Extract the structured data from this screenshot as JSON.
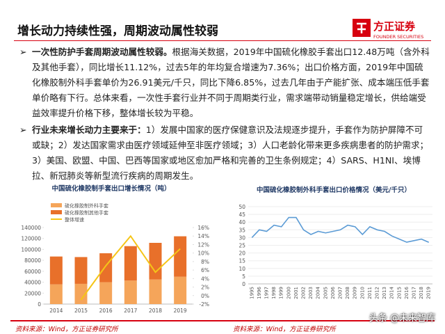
{
  "header": {
    "title": "增长动力持续性强，周期波动属性较弱",
    "logo": "方正证券",
    "logo_en": "FOUNDER SECURITIES"
  },
  "bullets": [
    {
      "lead": "一次性防护手套周期波动属性较弱。",
      "text": "根据海关数据，2019年中国硫化橡胶手套出口12.48万吨（含外科及其他手套），同比增长11.12%，过去5年的年均复合增速为7.36%；出口价格方面，2019年中国硫化橡胶制外科手套单价为26.91美元/千只，同比下降6.85%，过去几年由于产能扩张、成本端压低手套单价略有下行。总体来看，一次性手套行业并不同于周期类行业，需求端带动销量稳定增长，供给端受益效率提升价格下移，整体增长较为平稳。"
    },
    {
      "lead": "行业未来增长动力主要来于：",
      "text": "1）发展中国家的医疗保健意识及法规逐步提升，手套作为防护屏障不可或缺；2）发达国家需求由医疗领域延伸至非医疗领域；3）人口老龄化带来更多疾病患者的防护需求；3）美国、欧盟、中国、巴西等国家或地区愈加严格和完善的卫生条例规定；4）SARS、H1NI、埃博拉、新冠肺炎等新型流行疾病的周期发生。"
    }
  ],
  "chart_data": [
    {
      "type": "bar",
      "stacked": true,
      "grid": false,
      "legend": "top-left",
      "title": "中国硫化橡胶制手套出口增长情况（吨）",
      "categories": [
        "2014",
        "2015",
        "2016",
        "2017",
        "2018",
        "2019"
      ],
      "series": [
        {
          "name": "硫化橡胶制外科手套",
          "color": "#f5a55a",
          "values": [
            36000,
            37000,
            40000,
            43000,
            45000,
            50000
          ]
        },
        {
          "name": "硫化橡胶制其他手套",
          "color": "#e8702a",
          "values": [
            51000,
            49000,
            53000,
            63000,
            67000,
            74000
          ]
        },
        {
          "name": "整体增速",
          "color": "#f5c518",
          "axis": "y2",
          "values": [
            null,
            -1,
            7,
            14,
            5.5,
            11
          ]
        }
      ],
      "ylim": [
        0,
        140000
      ],
      "yticks": [
        0,
        20000,
        40000,
        60000,
        80000,
        100000,
        120000,
        140000
      ],
      "y2lim": [
        -2,
        16
      ],
      "y2ticks": [
        {
          "value": -2,
          "label": "-2%"
        },
        {
          "value": 0,
          "label": "0%"
        },
        {
          "value": 2,
          "label": "2%"
        },
        {
          "value": 4,
          "label": "4%"
        },
        {
          "value": 6,
          "label": "6%"
        },
        {
          "value": 8,
          "label": "8%"
        },
        {
          "value": 10,
          "label": "10%"
        },
        {
          "value": 12,
          "label": "12%"
        },
        {
          "value": 14,
          "label": "14%"
        },
        {
          "value": 16,
          "label": "16%"
        }
      ]
    },
    {
      "type": "line",
      "grid": true,
      "title": "中国硫化橡胶制外科手套出口价格情况（美元/千只）",
      "color": "#5b9bd5",
      "categories": [
        "1995",
        "1996",
        "1997",
        "1998",
        "1999",
        "2000",
        "2001",
        "2002",
        "2003",
        "2004",
        "2005",
        "2006",
        "2007",
        "2008",
        "2009",
        "2010",
        "2011",
        "2012",
        "2013",
        "2014",
        "2015",
        "2016",
        "2017",
        "2018",
        "2019"
      ],
      "values": [
        30,
        35,
        34,
        38,
        37,
        43,
        43,
        35,
        32,
        34,
        33,
        34,
        35,
        38,
        37,
        32,
        37,
        35,
        34,
        31,
        29,
        27,
        28,
        29,
        26.91
      ],
      "ylim": [
        0,
        50
      ],
      "yticks": [
        0,
        5,
        10,
        15,
        20,
        25,
        30,
        35,
        40,
        45,
        50
      ]
    }
  ],
  "sources": [
    "资料来源：Wind，方正证券研究所",
    "资料来源：Wind，方正证券研究所"
  ],
  "watermark": "头条 @未来智库"
}
